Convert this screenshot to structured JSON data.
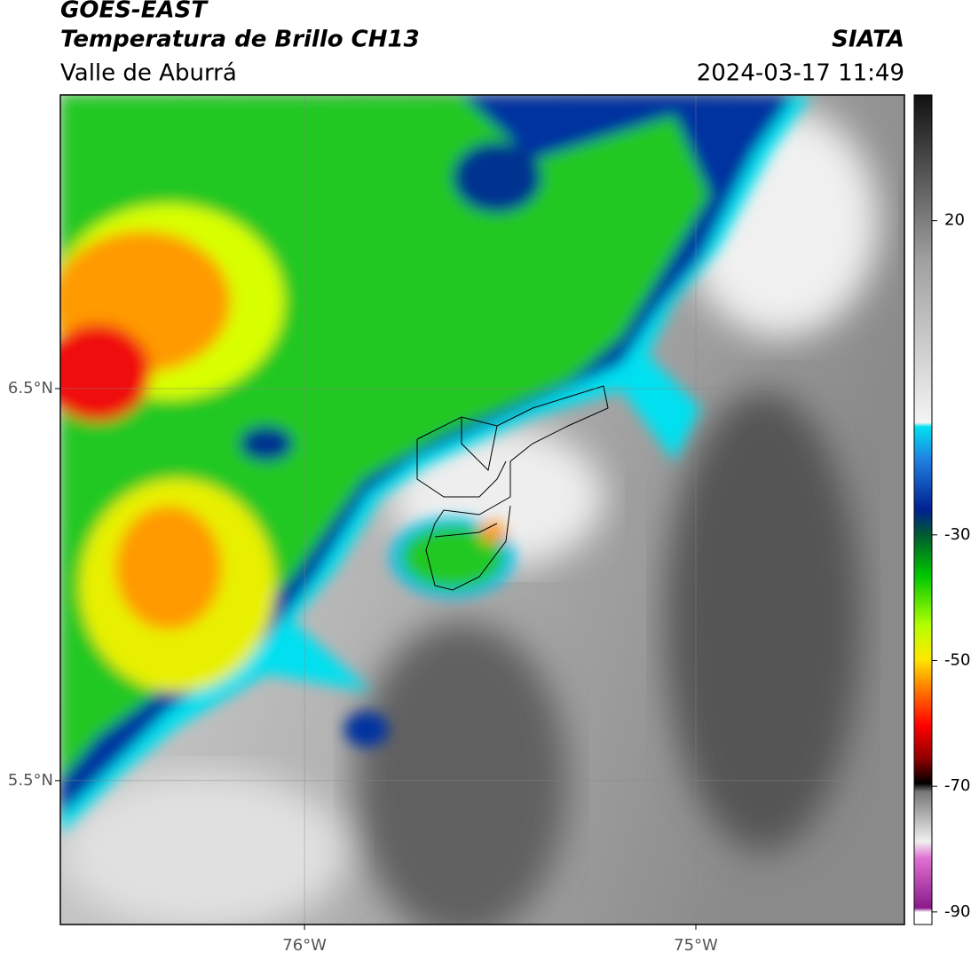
{
  "header": {
    "title": "GOES-EAST",
    "subtitle": "Temperatura de Brillo CH13",
    "region": "Valle de Aburrá",
    "source": "SIATA",
    "datetime": "2024-03-17 11:49"
  },
  "map": {
    "xlim": [
      -76.624,
      -74.467
    ],
    "ylim": [
      5.133,
      7.249
    ],
    "xticks": [
      {
        "value": -76,
        "label": "76°W"
      },
      {
        "value": -75,
        "label": "75°W"
      }
    ],
    "yticks": [
      {
        "value": 6.5,
        "label": "6.5°N"
      },
      {
        "value": 5.5,
        "label": "5.5°N"
      }
    ],
    "grid": true
  },
  "colorbar": {
    "lim": [
      -92,
      40
    ],
    "ticks": [
      -90,
      -70,
      -50,
      -30,
      20
    ]
  }
}
